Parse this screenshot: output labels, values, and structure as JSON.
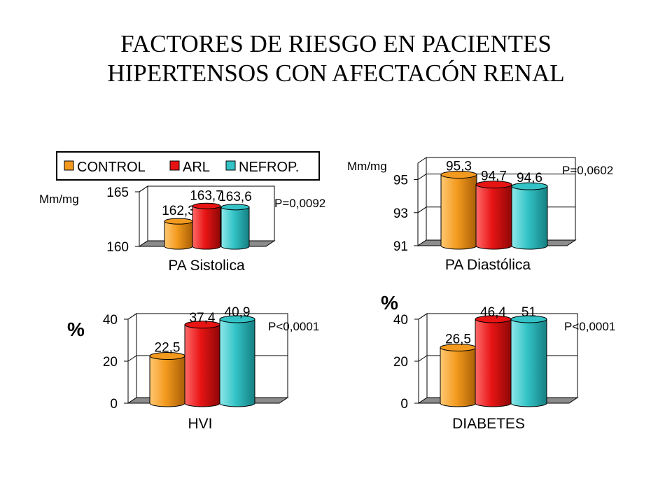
{
  "title": {
    "line1": "FACTORES DE RIESGO EN PACIENTES",
    "line2": "HIPERTENSOS CON AFECTACÓN RENAL"
  },
  "legend": {
    "items": [
      {
        "label": "CONTROL",
        "color": "#f39a1e"
      },
      {
        "label": "ARL",
        "color": "#e81414"
      },
      {
        "label": "NEFROP.",
        "color": "#33c3c6"
      }
    ]
  },
  "chart_data": [
    {
      "type": "bar",
      "title": "",
      "xlabel": "PA Sistolica",
      "ylabel": "Mm/mg",
      "categories": [
        "CONTROL",
        "ARL",
        "NEFROP."
      ],
      "values": [
        162.3,
        163.7,
        163.6
      ],
      "value_labels": [
        "162,3",
        "163,7",
        "163,6"
      ],
      "ylim": [
        160,
        165
      ],
      "yticks": [
        "160",
        "165"
      ],
      "annotation": "P=0,0092",
      "grid": true
    },
    {
      "type": "bar",
      "title": "",
      "xlabel": "PA Diastólica",
      "ylabel": "Mm/mg",
      "categories": [
        "CONTROL",
        "ARL",
        "NEFROP."
      ],
      "values": [
        95.3,
        94.7,
        94.6
      ],
      "value_labels": [
        "95,3",
        "94,7",
        "94,6"
      ],
      "ylim": [
        91,
        96
      ],
      "yticks": [
        "91",
        "93",
        "95"
      ],
      "annotation": "P=0,0602",
      "grid": true
    },
    {
      "type": "bar",
      "title": "",
      "xlabel": "HVI",
      "ylabel": "%",
      "categories": [
        "CONTROL",
        "ARL",
        "NEFROP."
      ],
      "values": [
        22.5,
        37.4,
        40.9
      ],
      "value_labels": [
        "22,5",
        "37,4",
        "40,9"
      ],
      "ylim": [
        0,
        40
      ],
      "yticks": [
        "0",
        "20",
        "40"
      ],
      "annotation": "P<0,0001",
      "grid": true
    },
    {
      "type": "bar",
      "title": "",
      "xlabel": "DIABETES",
      "ylabel": "%",
      "categories": [
        "CONTROL",
        "ARL",
        "NEFROP."
      ],
      "values": [
        26.5,
        46.4,
        51
      ],
      "value_labels": [
        "26,5",
        "46,4",
        "51"
      ],
      "ylim": [
        0,
        40
      ],
      "yticks": [
        "0",
        "20",
        "40"
      ],
      "annotation": "P<0,0001",
      "grid": true
    }
  ]
}
